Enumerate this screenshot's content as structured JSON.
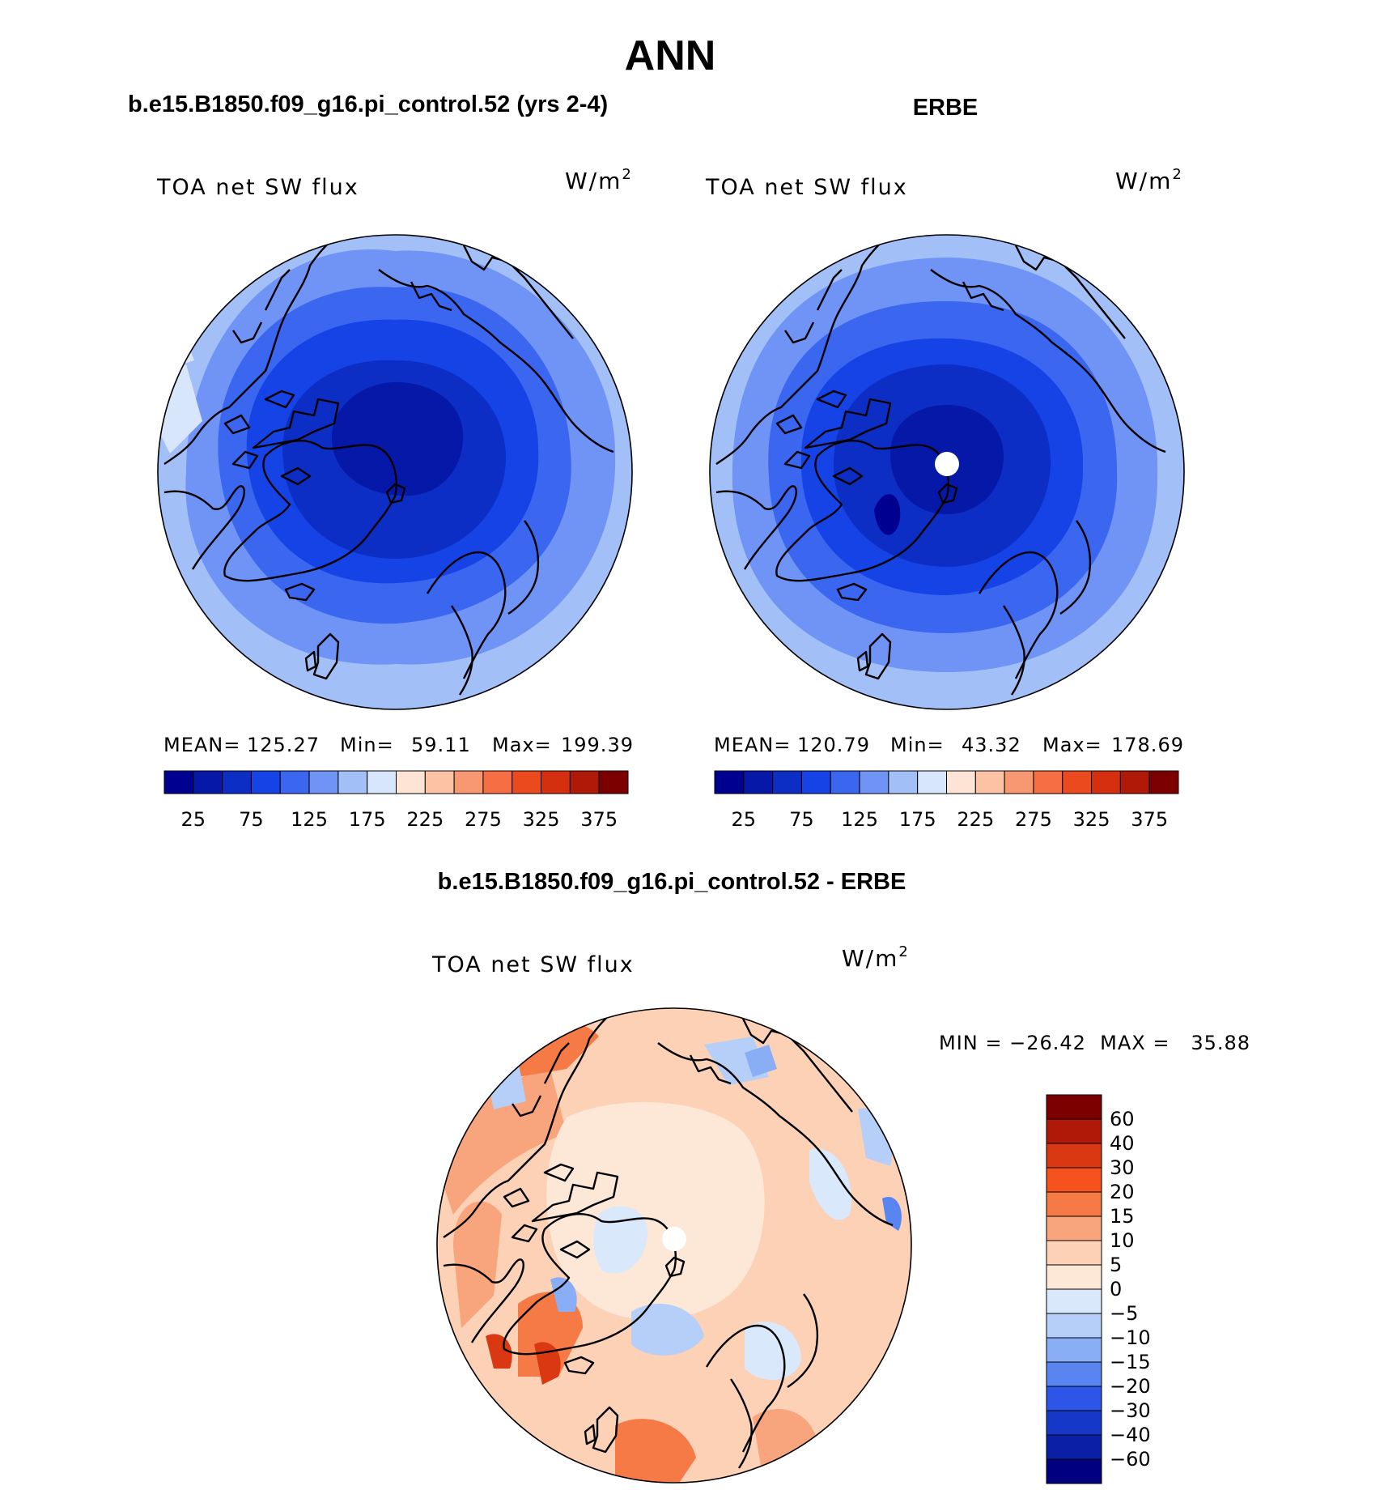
{
  "title": "ANN",
  "panels": [
    {
      "case_title": "b.e15.B1850.f09_g16.pi_control.52 (yrs 2-4)",
      "variable": "TOA net SW flux",
      "units": "W/m",
      "units_sup": "2",
      "stats": {
        "mean_label": "MEAN=",
        "mean": "125.27",
        "min_label": "Min=",
        "min": "59.11",
        "max_label": "Max=",
        "max": "199.39"
      },
      "field": {
        "pole": 40,
        "c1": 95,
        "c2": 125,
        "c3": 150,
        "c4": 170,
        "c5": 190,
        "rim": 200,
        "ice_greenland": 60
      }
    },
    {
      "case_title": "ERBE",
      "variable": "TOA net SW flux",
      "units": "W/m",
      "units_sup": "2",
      "stats": {
        "mean_label": "MEAN=",
        "mean": "120.79",
        "min_label": "Min=",
        "min": "43.32",
        "max_label": "Max=",
        "max": "178.69"
      },
      "field": {
        "pole": 45,
        "c1": 75,
        "c2": 105,
        "c3": 130,
        "c4": 150,
        "c5": 165,
        "rim": 175,
        "ice_greenland": 55
      }
    }
  ],
  "colorbar_top": {
    "ticks": [
      "25",
      "75",
      "125",
      "175",
      "225",
      "275",
      "325",
      "375"
    ],
    "colors": [
      "#000090",
      "#0618a8",
      "#0c2ec4",
      "#1543e6",
      "#3a66f0",
      "#6f94f5",
      "#a3bff8",
      "#d8e6fb",
      "#fde4d4",
      "#fbc3a4",
      "#f89872",
      "#f56e44",
      "#ea4a1e",
      "#d43010",
      "#b01808",
      "#7d0000"
    ]
  },
  "difference": {
    "title": "b.e15.B1850.f09_g16.pi_control.52 - ERBE",
    "variable": "TOA net SW flux",
    "units": "W/m",
    "units_sup": "2",
    "minmax": "MIN = −26.42  MAX =   35.88",
    "colorbar_labels": [
      "60",
      "40",
      "30",
      "20",
      "15",
      "10",
      "5",
      "0",
      "−5",
      "−10",
      "−15",
      "−20",
      "−30",
      "−40",
      "−60"
    ],
    "colorbar_colors": [
      "#7d0000",
      "#b01808",
      "#d93812",
      "#f5521e",
      "#f57a45",
      "#f8a47c",
      "#fcd1b6",
      "#fde8d8",
      "#d9e8fb",
      "#b6cff8",
      "#8aaef5",
      "#5985f0",
      "#2d56e8",
      "#1538c9",
      "#0a1fa5",
      "#000080"
    ]
  }
}
